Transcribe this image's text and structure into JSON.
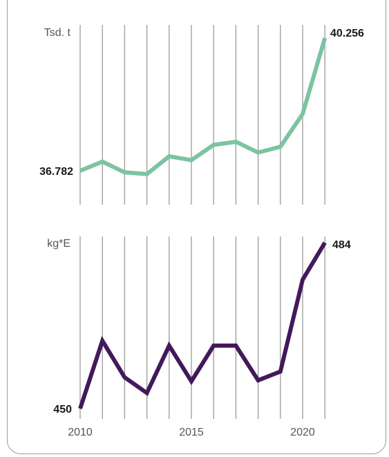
{
  "chart_data": [
    {
      "type": "line",
      "unit_label": "Tsd. t",
      "x": [
        2010,
        2011,
        2012,
        2013,
        2014,
        2015,
        2016,
        2017,
        2018,
        2019,
        2020,
        2021
      ],
      "values": [
        36782,
        37020,
        36740,
        36695,
        37160,
        37060,
        37460,
        37540,
        37260,
        37410,
        38270,
        40256
      ],
      "start_label": "36.782",
      "end_label": "40.256",
      "color": "#7cc4a1",
      "grid": true
    },
    {
      "type": "line",
      "unit_label": "kg*E",
      "x": [
        2010,
        2011,
        2012,
        2013,
        2014,
        2015,
        2016,
        2017,
        2018,
        2019,
        2020,
        2021
      ],
      "values": [
        450,
        463.9,
        456.4,
        453.2,
        462.9,
        455.6,
        462.9,
        462.9,
        455.8,
        457.6,
        476.4,
        484
      ],
      "start_label": "450",
      "end_label": "484",
      "color": "#42195a",
      "grid": true
    }
  ],
  "x_ticks": [
    "2010",
    "2015",
    "2020"
  ]
}
